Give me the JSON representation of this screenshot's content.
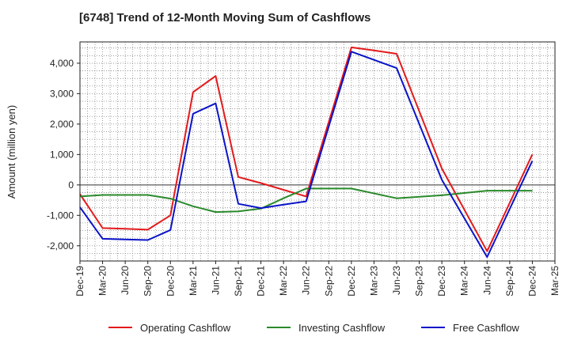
{
  "chart_data": {
    "type": "line",
    "title": "[6748]  Trend of 12-Month Moving Sum of Cashflows",
    "xlabel": "",
    "ylabel": "Amount (million yen)",
    "ylim": [
      -2500,
      4700
    ],
    "yticks": [
      -2000,
      -1000,
      0,
      1000,
      2000,
      3000,
      4000
    ],
    "ytick_labels": [
      "-2,000",
      "-1,000",
      "0",
      "1,000",
      "2,000",
      "3,000",
      "4,000"
    ],
    "categories": [
      "Dec-19",
      "Mar-20",
      "Jun-20",
      "Sep-20",
      "Dec-20",
      "Mar-21",
      "Jun-21",
      "Sep-21",
      "Dec-21",
      "Mar-22",
      "Jun-22",
      "Sep-22",
      "Dec-22",
      "Mar-23",
      "Jun-23",
      "Sep-23",
      "Dec-23",
      "Mar-24",
      "Jun-24",
      "Sep-24",
      "Dec-24",
      "Mar-25"
    ],
    "grid": true,
    "legend_position": "bottom",
    "series": [
      {
        "name": "Operating Cashflow",
        "color": "#e31a1c",
        "values": [
          -300,
          -1420,
          -1440,
          -1470,
          -1000,
          3050,
          3580,
          260,
          60,
          -160,
          -380,
          null,
          4520,
          4420,
          4310,
          null,
          540,
          null,
          -2180,
          null,
          1000,
          null
        ]
      },
      {
        "name": "Investing Cashflow",
        "color": "#2a8a2a",
        "values": [
          -380,
          -330,
          -330,
          -330,
          -450,
          -700,
          -890,
          -870,
          -780,
          -440,
          -120,
          -120,
          -120,
          null,
          -440,
          null,
          -340,
          null,
          -190,
          -190,
          -190,
          null
        ]
      },
      {
        "name": "Free Cashflow",
        "color": "#0a14c8",
        "values": [
          -730,
          -1770,
          -1790,
          -1810,
          -1480,
          2340,
          2680,
          -620,
          -760,
          -650,
          -540,
          null,
          4380,
          null,
          3840,
          null,
          170,
          null,
          -2370,
          null,
          790,
          null
        ]
      }
    ]
  }
}
